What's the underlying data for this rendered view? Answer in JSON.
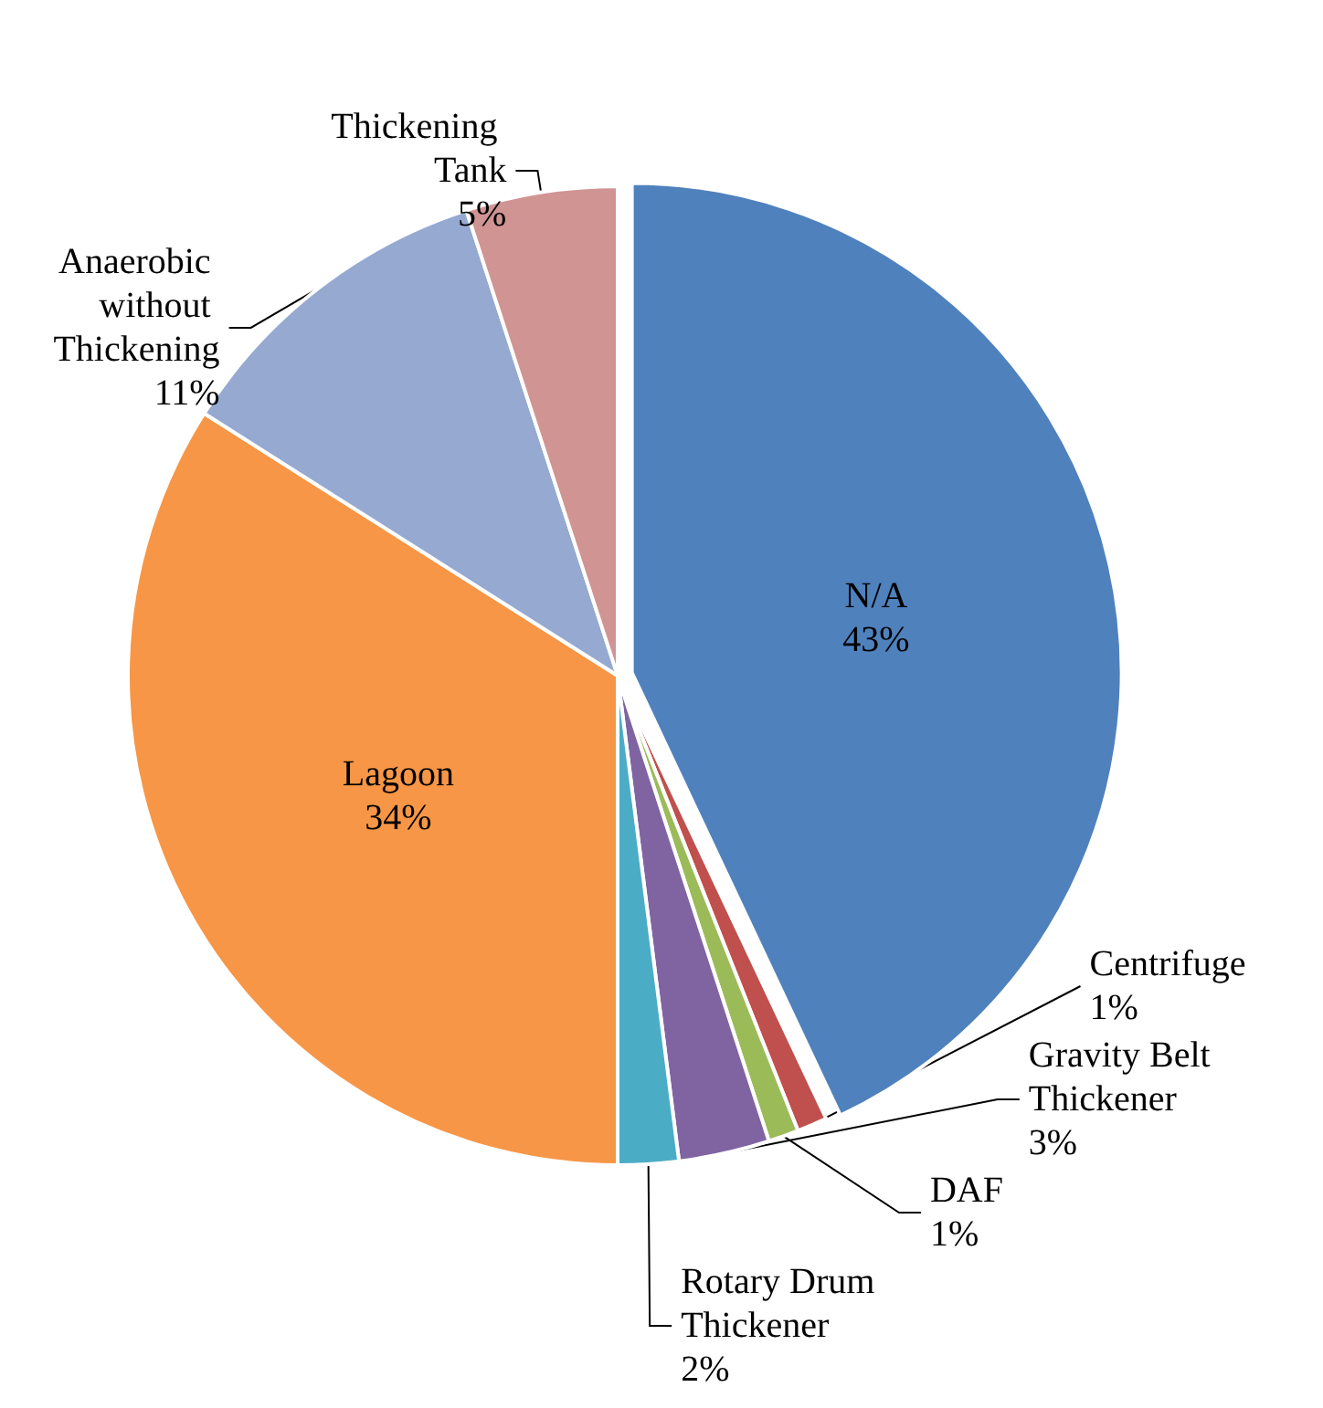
{
  "chart_data": {
    "type": "pie",
    "categories": [
      "N/A",
      "Centrifuge",
      "DAF",
      "Gravity Belt Thickener",
      "Rotary Drum Thickener",
      "Lagoon",
      "Anaerobic without Thickening",
      "Thickening Tank"
    ],
    "values": [
      43,
      1,
      1,
      3,
      2,
      34,
      11,
      5
    ],
    "value_labels": [
      "43%",
      "1%",
      "1%",
      "3%",
      "2%",
      "34%",
      "11%",
      "5%"
    ],
    "colors": [
      "#4f81bd",
      "#c0504d",
      "#9bbb59",
      "#8064a2",
      "#4bacc6",
      "#f79646",
      "#95a9d1",
      "#d09493"
    ]
  }
}
